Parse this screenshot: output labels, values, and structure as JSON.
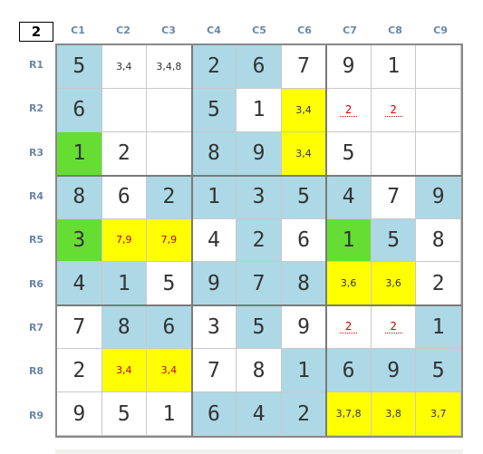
{
  "corner": "2",
  "columns": [
    "C1",
    "C2",
    "C3",
    "C4",
    "C5",
    "C6",
    "C7",
    "C8",
    "C9"
  ],
  "rows": [
    "R1",
    "R2",
    "R3",
    "R4",
    "R5",
    "R6",
    "R7",
    "R8",
    "R9"
  ],
  "colors": {
    "blue": "#add8e6",
    "yellow": "#ffff00",
    "green": "#66dd33",
    "white": "#ffffff"
  },
  "grid": [
    [
      {
        "v": "5",
        "bg": "blue"
      },
      {
        "v": "3,4",
        "bg": "white",
        "s": 1
      },
      {
        "v": "3,4,8",
        "bg": "white",
        "s": 1
      },
      {
        "v": "2",
        "bg": "blue"
      },
      {
        "v": "6",
        "bg": "blue"
      },
      {
        "v": "7",
        "bg": "white"
      },
      {
        "v": "9",
        "bg": "white"
      },
      {
        "v": "1",
        "bg": "white"
      },
      {
        "v": "",
        "bg": "white"
      }
    ],
    [
      {
        "v": "6",
        "bg": "blue"
      },
      {
        "v": "",
        "bg": "white"
      },
      {
        "v": "",
        "bg": "white"
      },
      {
        "v": "5",
        "bg": "blue"
      },
      {
        "v": "1",
        "bg": "white"
      },
      {
        "v": "3,4",
        "bg": "yellow",
        "s": 1
      },
      {
        "v": "2",
        "bg": "white",
        "d": 1
      },
      {
        "v": "2",
        "bg": "white",
        "d": 1
      },
      {
        "v": "",
        "bg": "white"
      }
    ],
    [
      {
        "v": "1",
        "bg": "green"
      },
      {
        "v": "2",
        "bg": "white"
      },
      {
        "v": "",
        "bg": "white"
      },
      {
        "v": "8",
        "bg": "blue"
      },
      {
        "v": "9",
        "bg": "blue"
      },
      {
        "v": "3,4",
        "bg": "yellow",
        "s": 1
      },
      {
        "v": "5",
        "bg": "white"
      },
      {
        "v": "",
        "bg": "white"
      },
      {
        "v": "",
        "bg": "white"
      }
    ],
    [
      {
        "v": "8",
        "bg": "blue"
      },
      {
        "v": "6",
        "bg": "white"
      },
      {
        "v": "2",
        "bg": "blue"
      },
      {
        "v": "1",
        "bg": "blue"
      },
      {
        "v": "3",
        "bg": "blue"
      },
      {
        "v": "5",
        "bg": "blue"
      },
      {
        "v": "4",
        "bg": "blue"
      },
      {
        "v": "7",
        "bg": "white"
      },
      {
        "v": "9",
        "bg": "blue"
      }
    ],
    [
      {
        "v": "3",
        "bg": "green"
      },
      {
        "v": "7,9",
        "bg": "yellow",
        "s": 1,
        "r": 1
      },
      {
        "v": "7,9",
        "bg": "yellow",
        "s": 1,
        "r": 1
      },
      {
        "v": "4",
        "bg": "white"
      },
      {
        "v": "2",
        "bg": "blue"
      },
      {
        "v": "6",
        "bg": "white"
      },
      {
        "v": "1",
        "bg": "green"
      },
      {
        "v": "5",
        "bg": "blue"
      },
      {
        "v": "8",
        "bg": "white"
      }
    ],
    [
      {
        "v": "4",
        "bg": "blue"
      },
      {
        "v": "1",
        "bg": "blue"
      },
      {
        "v": "5",
        "bg": "white"
      },
      {
        "v": "9",
        "bg": "blue"
      },
      {
        "v": "7",
        "bg": "blue"
      },
      {
        "v": "8",
        "bg": "blue"
      },
      {
        "v": "3,6",
        "bg": "yellow",
        "s": 1
      },
      {
        "v": "3,6",
        "bg": "yellow",
        "s": 1
      },
      {
        "v": "2",
        "bg": "white"
      }
    ],
    [
      {
        "v": "7",
        "bg": "white"
      },
      {
        "v": "8",
        "bg": "blue"
      },
      {
        "v": "6",
        "bg": "blue"
      },
      {
        "v": "3",
        "bg": "white"
      },
      {
        "v": "5",
        "bg": "blue"
      },
      {
        "v": "9",
        "bg": "white"
      },
      {
        "v": "2",
        "bg": "white",
        "d": 1
      },
      {
        "v": "2",
        "bg": "white",
        "d": 1
      },
      {
        "v": "1",
        "bg": "blue"
      }
    ],
    [
      {
        "v": "2",
        "bg": "white"
      },
      {
        "v": "3,4",
        "bg": "yellow",
        "s": 1,
        "r": 1
      },
      {
        "v": "3,4",
        "bg": "yellow",
        "s": 1,
        "r": 1
      },
      {
        "v": "7",
        "bg": "white"
      },
      {
        "v": "8",
        "bg": "white"
      },
      {
        "v": "1",
        "bg": "blue"
      },
      {
        "v": "6",
        "bg": "blue"
      },
      {
        "v": "9",
        "bg": "blue"
      },
      {
        "v": "5",
        "bg": "blue"
      }
    ],
    [
      {
        "v": "9",
        "bg": "white"
      },
      {
        "v": "5",
        "bg": "white"
      },
      {
        "v": "1",
        "bg": "white"
      },
      {
        "v": "6",
        "bg": "blue"
      },
      {
        "v": "4",
        "bg": "blue"
      },
      {
        "v": "2",
        "bg": "blue"
      },
      {
        "v": "3,7,8",
        "bg": "yellow",
        "s": 1
      },
      {
        "v": "3,8",
        "bg": "yellow",
        "s": 1
      },
      {
        "v": "3,7",
        "bg": "yellow",
        "s": 1
      }
    ]
  ]
}
